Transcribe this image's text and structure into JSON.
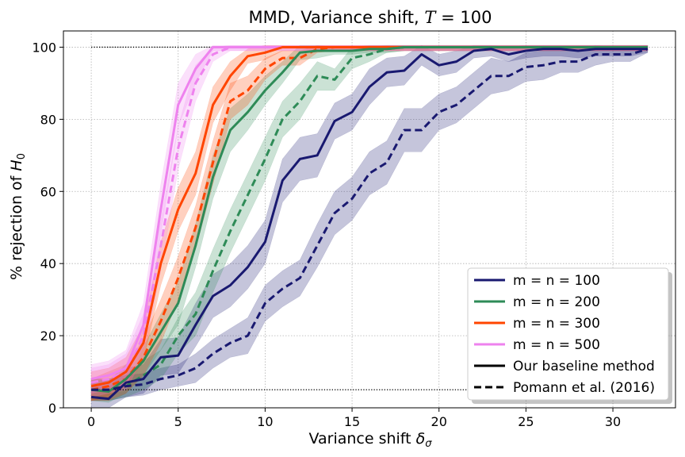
{
  "chart_data": {
    "type": "line",
    "title": "MMD, Variance shift, T = 100",
    "xlabel": "Variance shift δσ",
    "ylabel": "% rejection of H0",
    "xlim": [
      -1.6,
      33.6
    ],
    "ylim": [
      0,
      104.5
    ],
    "xticks": [
      0,
      5,
      10,
      15,
      20,
      25,
      30
    ],
    "yticks": [
      0,
      20,
      40,
      60,
      80,
      100
    ],
    "grid": true,
    "legend_position": "lower-right",
    "reference_lines": [
      {
        "y": 100,
        "x_from": 0,
        "x_to": 32,
        "style": "dotted",
        "color": "#000000"
      },
      {
        "y": 5,
        "x_from": 0,
        "x_to": 32,
        "style": "dotted",
        "color": "#000000"
      }
    ],
    "sample_sizes": [
      {
        "name": "m = n = 100",
        "color": "#191970"
      },
      {
        "name": "m = n = 200",
        "color": "#2e8b57"
      },
      {
        "name": "m = n = 300",
        "color": "#ff4500"
      },
      {
        "name": "m = n = 500",
        "color": "#ee82ee"
      }
    ],
    "methods": [
      {
        "name": "Our baseline method",
        "dash": "solid"
      },
      {
        "name": "Pomann et al. (2016)",
        "dash": "dashed"
      }
    ],
    "series": [
      {
        "size": "m = n = 100",
        "method": "Our baseline method",
        "color": "#191970",
        "dash": "solid",
        "x": [
          0,
          1,
          2,
          3,
          4,
          5,
          6,
          7,
          8,
          9,
          10,
          11,
          12,
          13,
          14,
          15,
          16,
          17,
          18,
          19,
          20,
          21,
          22,
          23,
          24,
          25,
          26,
          27,
          28,
          29,
          30,
          31,
          32
        ],
        "y": [
          3,
          2.5,
          7,
          8,
          14,
          14.5,
          23,
          31,
          34,
          39,
          46,
          63,
          69,
          70,
          79.5,
          82,
          89,
          93,
          93.5,
          98,
          95,
          96,
          99,
          99.5,
          98,
          99,
          99.5,
          99.5,
          99,
          99.5,
          99.5,
          99.5,
          99.5
        ],
        "band": [
          3,
          3,
          4,
          4,
          5,
          5,
          6,
          6,
          6,
          6,
          6,
          6,
          6,
          6,
          5,
          5,
          5,
          4,
          4,
          3,
          3,
          3,
          2,
          2,
          2,
          2,
          2,
          2,
          2,
          2,
          2,
          2,
          1
        ]
      },
      {
        "size": "m = n = 100",
        "method": "Pomann et al. (2016)",
        "color": "#191970",
        "dash": "dashed",
        "x": [
          0,
          1,
          2,
          3,
          4,
          5,
          6,
          7,
          8,
          9,
          10,
          11,
          12,
          13,
          14,
          15,
          16,
          17,
          18,
          19,
          20,
          21,
          22,
          23,
          24,
          25,
          26,
          27,
          28,
          29,
          30,
          31,
          32
        ],
        "y": [
          5,
          5,
          6,
          6.5,
          8,
          9,
          11,
          15,
          18,
          20,
          29,
          33,
          36,
          45,
          54,
          58,
          65,
          68,
          77,
          77,
          82,
          84,
          88,
          92,
          92,
          94.5,
          95,
          96,
          96,
          98,
          98,
          98,
          99.5
        ],
        "band": [
          3,
          3,
          3,
          3,
          3,
          3,
          4,
          4,
          4,
          5,
          5,
          5,
          5,
          6,
          6,
          6,
          6,
          6,
          6,
          6,
          5,
          5,
          5,
          5,
          4,
          4,
          4,
          3,
          3,
          3,
          2,
          2,
          1
        ]
      },
      {
        "size": "m = n = 200",
        "method": "Our baseline method",
        "color": "#2e8b57",
        "dash": "solid",
        "x": [
          0,
          1,
          2,
          3,
          4,
          5,
          6,
          7,
          8,
          9,
          10,
          11,
          12,
          13,
          14,
          15,
          16,
          17,
          18,
          19,
          20,
          21,
          22,
          23,
          24,
          25,
          26,
          27,
          28,
          29,
          30,
          31,
          32
        ],
        "y": [
          5,
          4.5,
          8,
          13,
          21,
          29,
          45,
          64,
          77,
          82,
          88,
          93,
          98.5,
          99,
          99,
          99,
          99.5,
          99.5,
          100,
          100,
          100,
          100,
          100,
          100,
          100,
          100,
          100,
          100,
          100,
          100,
          100,
          100,
          100
        ],
        "band": [
          3,
          3,
          4,
          4,
          5,
          6,
          6,
          6,
          6,
          5,
          4,
          3,
          2,
          2,
          1,
          1,
          1,
          1,
          1,
          1,
          1,
          1,
          1,
          1,
          1,
          1,
          1,
          1,
          1,
          1,
          1,
          1,
          1
        ]
      },
      {
        "size": "m = n = 200",
        "method": "Pomann et al. (2016)",
        "color": "#2e8b57",
        "dash": "dashed",
        "x": [
          0,
          1,
          2,
          3,
          4,
          5,
          6,
          7,
          8,
          9,
          10,
          11,
          12,
          13,
          14,
          15,
          16,
          17,
          18,
          19,
          20,
          21,
          22,
          23,
          24,
          25,
          26,
          27,
          28,
          29,
          30,
          31,
          32
        ],
        "y": [
          5,
          5,
          6,
          9,
          12,
          20,
          26,
          38,
          49,
          59,
          69,
          80,
          85,
          92,
          91,
          97,
          98,
          99.5,
          100,
          100,
          100,
          100,
          100,
          100,
          100,
          100,
          100,
          100,
          100,
          100,
          100,
          100,
          100
        ],
        "band": [
          3,
          3,
          3,
          4,
          4,
          5,
          6,
          6,
          6,
          6,
          6,
          5,
          5,
          4,
          3,
          3,
          2,
          1,
          1,
          1,
          1,
          1,
          1,
          1,
          1,
          1,
          1,
          1,
          1,
          1,
          1,
          1,
          1
        ]
      },
      {
        "size": "m = n = 300",
        "method": "Our baseline method",
        "color": "#ff4500",
        "dash": "solid",
        "x": [
          0,
          1,
          2,
          3,
          4,
          5,
          6,
          7,
          8,
          9,
          10,
          11,
          12,
          13,
          14,
          15,
          16,
          17,
          18,
          19,
          20,
          21,
          22,
          23,
          24,
          25,
          26,
          27,
          28,
          29,
          30,
          31,
          32
        ],
        "y": [
          6,
          7,
          10,
          18,
          40,
          55,
          65,
          84,
          92,
          97.5,
          98.5,
          100,
          100,
          100,
          100,
          100,
          100,
          100,
          100,
          100,
          100,
          100,
          100,
          100,
          100,
          100,
          100,
          100,
          100,
          100,
          100,
          100,
          100
        ],
        "band": [
          4,
          4,
          4,
          5,
          6,
          6,
          6,
          5,
          4,
          2,
          2,
          1,
          1,
          1,
          1,
          1,
          1,
          1,
          1,
          1,
          1,
          1,
          1,
          1,
          1,
          1,
          1,
          1,
          1,
          1,
          1,
          1,
          1
        ]
      },
      {
        "size": "m = n = 300",
        "method": "Pomann et al. (2016)",
        "color": "#ff4500",
        "dash": "dashed",
        "x": [
          0,
          1,
          2,
          3,
          4,
          5,
          6,
          7,
          8,
          9,
          10,
          11,
          12,
          13,
          14,
          15,
          16,
          17,
          18,
          19,
          20,
          21,
          22,
          23,
          24,
          25,
          26,
          27,
          28,
          29,
          30,
          31,
          32
        ],
        "y": [
          5,
          6,
          8,
          14,
          24,
          36,
          50,
          68,
          85,
          88,
          94,
          97,
          97,
          99.5,
          100,
          100,
          100,
          100,
          100,
          100,
          100,
          100,
          100,
          100,
          100,
          100,
          100,
          100,
          100,
          100,
          100,
          100,
          100
        ],
        "band": [
          3,
          4,
          4,
          5,
          6,
          6,
          6,
          6,
          5,
          4,
          3,
          2,
          2,
          1,
          1,
          1,
          1,
          1,
          1,
          1,
          1,
          1,
          1,
          1,
          1,
          1,
          1,
          1,
          1,
          1,
          1,
          1,
          1
        ]
      },
      {
        "size": "m = n = 500",
        "method": "Our baseline method",
        "color": "#ee82ee",
        "dash": "solid",
        "x": [
          0,
          1,
          2,
          3,
          4,
          5,
          6,
          7,
          8,
          9,
          10,
          11,
          12,
          13,
          14,
          15,
          16,
          17,
          18,
          19,
          20,
          21,
          22,
          23,
          24,
          25,
          26,
          27,
          28,
          29,
          30,
          31,
          32
        ],
        "y": [
          8,
          9,
          11,
          23,
          55,
          84,
          94,
          100,
          100,
          100,
          100,
          100,
          100,
          100,
          100,
          100,
          100,
          100,
          100,
          100,
          100,
          100,
          100,
          100,
          100,
          100,
          100,
          100,
          100,
          100,
          100,
          100,
          100
        ],
        "band": [
          4,
          4,
          5,
          6,
          7,
          6,
          4,
          1,
          1,
          1,
          1,
          1,
          1,
          1,
          1,
          1,
          1,
          1,
          1,
          1,
          1,
          1,
          1,
          1,
          1,
          1,
          1,
          1,
          1,
          1,
          1,
          1,
          1
        ]
      },
      {
        "size": "m = n = 500",
        "method": "Pomann et al. (2016)",
        "color": "#ee82ee",
        "dash": "dashed",
        "x": [
          0,
          1,
          2,
          3,
          4,
          5,
          6,
          7,
          8,
          9,
          10,
          11,
          12,
          13,
          14,
          15,
          16,
          17,
          18,
          19,
          20,
          21,
          22,
          23,
          24,
          25,
          26,
          27,
          28,
          29,
          30,
          31,
          32
        ],
        "y": [
          7,
          8,
          10,
          20,
          45,
          72,
          90,
          98,
          100,
          100,
          100,
          100,
          100,
          100,
          100,
          100,
          100,
          100,
          100,
          100,
          100,
          100,
          100,
          100,
          100,
          100,
          100,
          100,
          100,
          100,
          100,
          100,
          100
        ],
        "band": [
          4,
          4,
          5,
          6,
          7,
          6,
          5,
          2,
          1,
          1,
          1,
          1,
          1,
          1,
          1,
          1,
          1,
          1,
          1,
          1,
          1,
          1,
          1,
          1,
          1,
          1,
          1,
          1,
          1,
          1,
          1,
          1,
          1
        ]
      }
    ]
  }
}
